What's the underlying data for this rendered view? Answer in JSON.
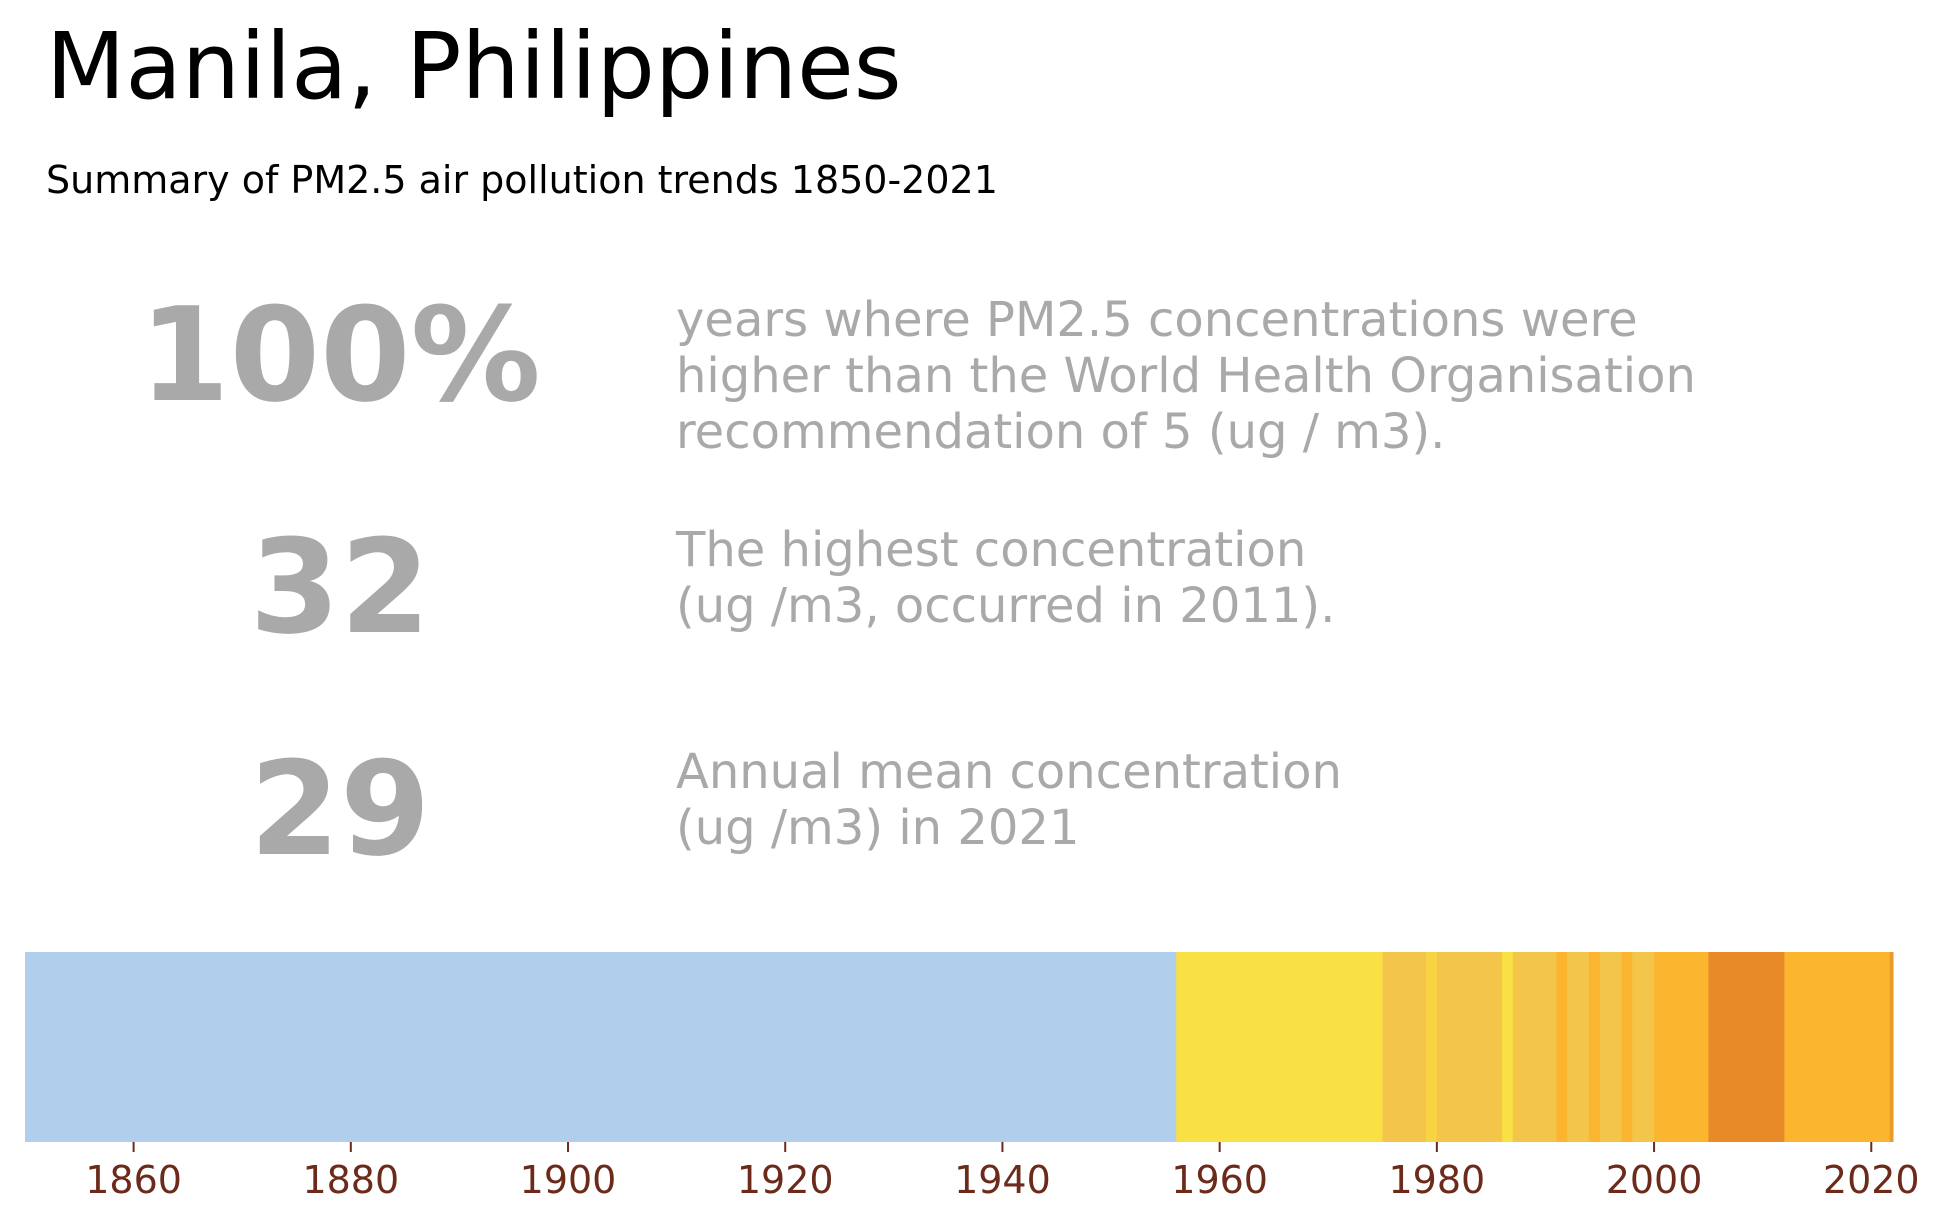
{
  "title": "Manila, Philippines",
  "subtitle": "Summary of PM2.5 air pollution trends 1850-2021",
  "stats": [
    {
      "value": "100%",
      "description": "years where PM2.5 concentrations were\nhigher than the World Health Organisation\nrecommendation of 5 (ug / m3)."
    },
    {
      "value": "32",
      "description": "The highest concentration\n(ug /m3, occurred in 2011)."
    },
    {
      "value": "29",
      "description": "Annual mean concentration\n(ug /m3) in 2021"
    }
  ],
  "chart_data": {
    "type": "heatmap",
    "title": "",
    "xlabel": "",
    "ylabel": "",
    "xlim": [
      1850,
      2022
    ],
    "grid": false,
    "tick_color": "#6b2a1a",
    "x_ticks": [
      1860,
      1880,
      1900,
      1920,
      1940,
      1960,
      1980,
      2000,
      2020
    ],
    "segments": [
      {
        "start": 1850,
        "end": 1956,
        "color": "#b0cfed"
      },
      {
        "start": 1956,
        "end": 1975,
        "color": "#f8e045"
      },
      {
        "start": 1975,
        "end": 1979,
        "color": "#f3c54a"
      },
      {
        "start": 1979,
        "end": 1980,
        "color": "#f8d445"
      },
      {
        "start": 1980,
        "end": 1986,
        "color": "#f3c54a"
      },
      {
        "start": 1986,
        "end": 1987,
        "color": "#f8e045"
      },
      {
        "start": 1987,
        "end": 1991,
        "color": "#f3c54a"
      },
      {
        "start": 1991,
        "end": 1992,
        "color": "#fbb52f"
      },
      {
        "start": 1992,
        "end": 1994,
        "color": "#f3c54a"
      },
      {
        "start": 1994,
        "end": 1995,
        "color": "#fbb52f"
      },
      {
        "start": 1995,
        "end": 1997,
        "color": "#f3c54a"
      },
      {
        "start": 1997,
        "end": 1998,
        "color": "#fbb52f"
      },
      {
        "start": 1998,
        "end": 2000,
        "color": "#f3c54a"
      },
      {
        "start": 2000,
        "end": 2005,
        "color": "#fbb52f"
      },
      {
        "start": 2005,
        "end": 2012,
        "color": "#e88a28"
      },
      {
        "start": 2012,
        "end": 2021.7,
        "color": "#fbb52f"
      },
      {
        "start": 2021.7,
        "end": 2022,
        "color": "#e99a2a"
      }
    ]
  }
}
